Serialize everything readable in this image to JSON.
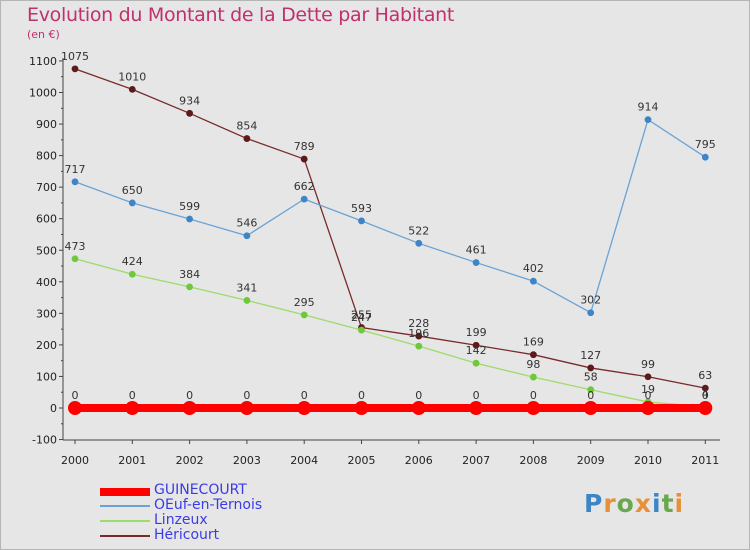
{
  "title": "Evolution du Montant de la Dette par Habitant",
  "unit": "(en €)",
  "logo": "Proxiti",
  "chart_data": {
    "type": "line",
    "title": "Evolution du Montant de la Dette par Habitant",
    "ylabel": "(en €)",
    "x": [
      "2000",
      "2001",
      "2002",
      "2003",
      "2004",
      "2005",
      "2006",
      "2007",
      "2008",
      "2009",
      "2010",
      "2011"
    ],
    "ylim": [
      -100,
      1100
    ],
    "yticks": [
      -100,
      0,
      100,
      200,
      300,
      400,
      500,
      600,
      700,
      800,
      900,
      1000,
      1100
    ],
    "grid": false,
    "legend_position": "bottom-left",
    "series": [
      {
        "name": "GUINECOURT",
        "color": "#ff0000",
        "point_color": "#ff0000",
        "values": [
          0,
          0,
          0,
          0,
          0,
          0,
          0,
          0,
          0,
          0,
          0,
          0
        ]
      },
      {
        "name": "OEuf-en-Ternois",
        "color": "#6aa3d5",
        "point_color": "#3d85c6",
        "values": [
          717,
          650,
          599,
          546,
          662,
          593,
          522,
          461,
          402,
          302,
          914,
          795
        ]
      },
      {
        "name": "Linzeux",
        "color": "#9ddb6a",
        "point_color": "#6fc83c",
        "values": [
          473,
          424,
          384,
          341,
          295,
          247,
          196,
          142,
          98,
          58,
          19,
          4
        ]
      },
      {
        "name": "Héricourt",
        "color": "#7a2a2a",
        "point_color": "#5c1a1a",
        "values": [
          1075,
          1010,
          934,
          854,
          789,
          255,
          228,
          199,
          169,
          127,
          99,
          63
        ]
      }
    ]
  }
}
